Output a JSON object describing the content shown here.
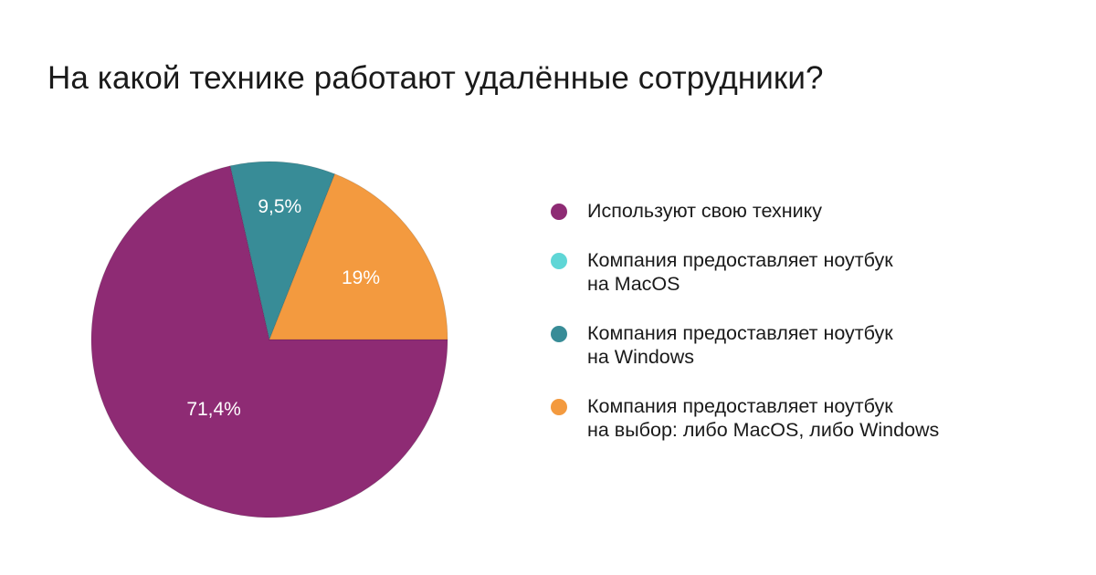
{
  "title": "На какой технике работают удалённые сотрудники?",
  "chart_data": {
    "type": "pie",
    "title": "На какой технике работают удалённые сотрудники?",
    "legend_position": "right",
    "slices": [
      {
        "label": "Используют свою технику",
        "value": 71.4,
        "value_label": "71,4%",
        "color": "#8e2b74"
      },
      {
        "label": "Компания предоставляет ноутбук\nна MacOS",
        "value": 0,
        "value_label": "",
        "color": "#5fd6d6"
      },
      {
        "label": "Компания предоставляет ноутбук\nна Windows",
        "value": 9.5,
        "value_label": "9,5%",
        "color": "#388c97"
      },
      {
        "label": "Компания предоставляет ноутбук\nна выбор: либо MacOS, либо Windows",
        "value": 19,
        "value_label": "19%",
        "color": "#f39a3f"
      }
    ]
  }
}
